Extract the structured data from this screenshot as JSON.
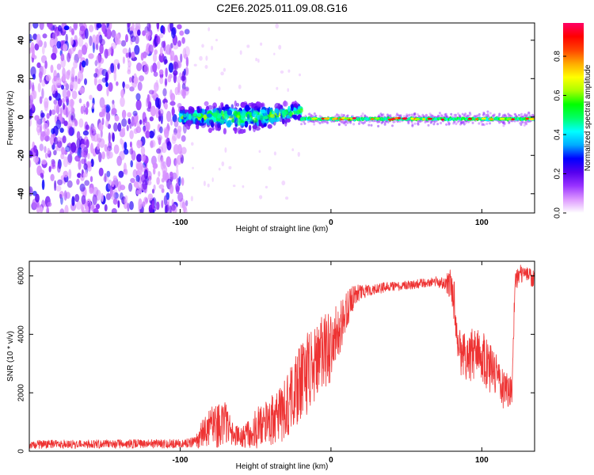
{
  "title": "C2E6.2025.011.09.08.G16",
  "chart_data": [
    {
      "type": "heatmap",
      "xlabel": "Height of straight line (km)",
      "ylabel": "Frequency (Hz)",
      "xlim": [
        -200,
        135
      ],
      "ylim": [
        -50,
        49
      ],
      "x_ticks": [
        -100,
        0,
        100
      ],
      "x_tick_labels": [
        "-100",
        "0",
        "100"
      ],
      "y_ticks": [
        -40,
        -20,
        0,
        20,
        40
      ],
      "y_tick_labels": [
        "-40",
        "-20",
        "0",
        "20",
        "40"
      ],
      "colorbar": {
        "label": "Normalized spectral amplitude",
        "range": [
          0,
          0.97
        ],
        "ticks": [
          0.0,
          0.2,
          0.4,
          0.6,
          0.8
        ],
        "tick_labels": [
          "0.0",
          "0.2",
          "0.4",
          "0.6",
          "0.8"
        ],
        "colormap": [
          "#ffffff",
          "#dd99ff",
          "#9933ff",
          "#5500ee",
          "#0000ff",
          "#00aaff",
          "#00ffff",
          "#00ff66",
          "#00ff00",
          "#aaff00",
          "#ffff00",
          "#ffaa00",
          "#ff4400",
          "#ff0000",
          "#ff0066"
        ]
      },
      "regions": [
        {
          "x_range": [
            -200,
            -95
          ],
          "freq_range": [
            -50,
            49
          ],
          "amplitude": "low",
          "pattern": "scattered noise"
        },
        {
          "x_range": [
            -100,
            -20
          ],
          "freq_center": 0,
          "freq_halfwidth": [
            6,
            14
          ],
          "amplitude": "low-medium",
          "pattern": "widening signal band"
        },
        {
          "x_range": [
            -20,
            135
          ],
          "freq_center": -1,
          "freq_halfwidth": 2.5,
          "amplitude": "high",
          "pattern": "narrow stable carrier"
        }
      ],
      "grid": false
    },
    {
      "type": "line",
      "xlabel": "Height of straight line (km)",
      "ylabel": "SNR (10 * v/v)",
      "xlim": [
        -200,
        135
      ],
      "ylim": [
        0,
        6500
      ],
      "x_ticks": [
        -100,
        0,
        100
      ],
      "x_tick_labels": [
        "-100",
        "0",
        "100"
      ],
      "y_ticks": [
        0,
        2000,
        4000,
        6000
      ],
      "y_tick_labels": [
        "0",
        "2000",
        "4000",
        "6000"
      ],
      "series": [
        {
          "color": "#ee3333",
          "x": [
            -200,
            -180,
            -160,
            -140,
            -120,
            -100,
            -90,
            -85,
            -80,
            -75,
            -70,
            -65,
            -60,
            -55,
            -50,
            -45,
            -40,
            -35,
            -30,
            -25,
            -20,
            -15,
            -10,
            -5,
            0,
            5,
            10,
            15,
            20,
            25,
            30,
            35,
            40,
            45,
            50,
            55,
            60,
            65,
            70,
            75,
            80,
            82,
            85,
            88,
            90,
            95,
            100,
            105,
            110,
            115,
            120,
            122,
            125,
            130,
            135
          ],
          "y": [
            230,
            240,
            240,
            250,
            250,
            260,
            300,
            600,
            800,
            900,
            1000,
            600,
            450,
            600,
            750,
            900,
            1050,
            1200,
            1500,
            1900,
            2400,
            2700,
            3000,
            3300,
            3600,
            4100,
            4700,
            5300,
            5450,
            5500,
            5550,
            5600,
            5650,
            5650,
            5700,
            5700,
            5750,
            5750,
            5800,
            5750,
            5700,
            5000,
            3600,
            3300,
            3100,
            3400,
            3300,
            2900,
            2500,
            2100,
            1900,
            5800,
            6100,
            6000,
            5900
          ],
          "noise": [
            150,
            150,
            150,
            150,
            150,
            150,
            200,
            500,
            700,
            800,
            700,
            500,
            300,
            500,
            700,
            800,
            900,
            1000,
            1100,
            1200,
            1300,
            1400,
            1400,
            1400,
            1300,
            1000,
            700,
            400,
            250,
            200,
            180,
            180,
            160,
            160,
            160,
            160,
            160,
            160,
            180,
            200,
            600,
            800,
            900,
            900,
            900,
            900,
            900,
            900,
            800,
            700,
            600,
            400,
            300,
            300,
            300
          ]
        }
      ],
      "grid": false
    }
  ]
}
